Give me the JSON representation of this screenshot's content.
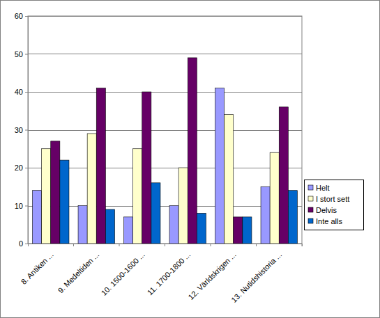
{
  "chart_data": {
    "type": "bar",
    "categories": [
      "8. Antiken ...",
      "9. Medeltiden ...",
      "10. 1500-1600 ...",
      "11. 1700-1800 ...",
      "12. Världskrigen ...",
      "13. Nutidshistoria ..."
    ],
    "series": [
      {
        "name": "Helt",
        "color": "#9999ff",
        "values": [
          14,
          10,
          7,
          10,
          41,
          15
        ]
      },
      {
        "name": "I stort sett",
        "color": "#ffffcc",
        "values": [
          25,
          29,
          25,
          20,
          34,
          24
        ]
      },
      {
        "name": "Delvis",
        "color": "#660066",
        "values": [
          27,
          41,
          40,
          49,
          7,
          36
        ]
      },
      {
        "name": "Inte alls",
        "color": "#0066cc",
        "values": [
          22,
          9,
          16,
          8,
          7,
          14
        ]
      }
    ],
    "ylim": [
      0,
      60
    ],
    "yticks": [
      0,
      10,
      20,
      30,
      40,
      50,
      60
    ],
    "grid": true,
    "legend": "right"
  }
}
